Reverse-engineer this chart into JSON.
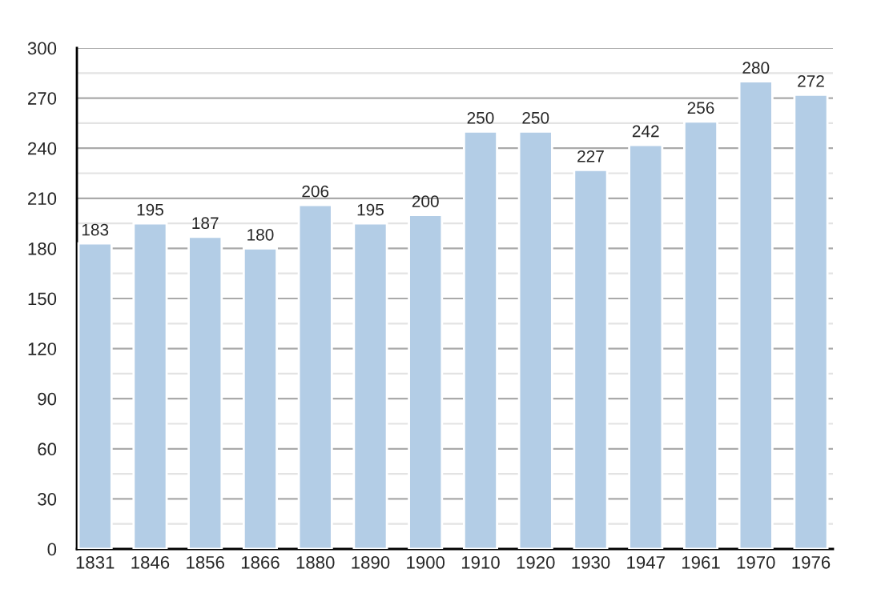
{
  "chart_data": {
    "type": "bar",
    "categories": [
      "1831",
      "1846",
      "1856",
      "1866",
      "1880",
      "1890",
      "1900",
      "1910",
      "1920",
      "1930",
      "1947",
      "1961",
      "1970",
      "1976"
    ],
    "values": [
      183,
      195,
      187,
      180,
      206,
      195,
      200,
      250,
      250,
      227,
      242,
      256,
      280,
      272
    ],
    "color": "#b3cde6",
    "ylim": [
      0,
      300
    ],
    "yticks": [
      0,
      30,
      60,
      90,
      120,
      150,
      180,
      210,
      240,
      270,
      300
    ],
    "grid": "y",
    "data_labels": true
  }
}
